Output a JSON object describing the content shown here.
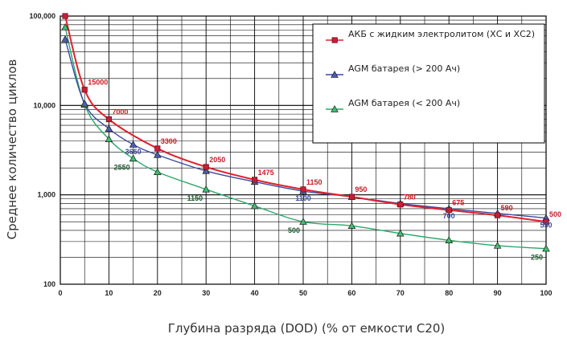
{
  "chart_data": {
    "type": "line",
    "xlabel": "Глубина разряда (DOD) (% от емкости С20)",
    "ylabel": "Среднее количество циклов",
    "xlim": [
      0,
      100
    ],
    "ylim": [
      100,
      100000
    ],
    "yscale": "log",
    "grid": true,
    "legend_position": "top-right",
    "x_ticks": [
      "0",
      "10",
      "20",
      "30",
      "40",
      "50",
      "60",
      "70",
      "80",
      "90",
      "100"
    ],
    "y_ticks": [
      "100",
      "1,000",
      "10,000",
      "100,000"
    ],
    "series": [
      {
        "name": "АКБ с жидким электролитом (ХС и ХС2)",
        "color": "#e0202c",
        "marker": "square",
        "x": [
          1,
          5,
          10,
          20,
          30,
          40,
          50,
          60,
          70,
          80,
          90,
          100
        ],
        "values": [
          100000,
          15000,
          7000,
          3300,
          2050,
          1475,
          1150,
          950,
          780,
          675,
          590,
          500
        ],
        "labels": [
          {
            "x": 5,
            "y": 15000,
            "text": "15000"
          },
          {
            "x": 10,
            "y": 7000,
            "text": "7000"
          },
          {
            "x": 20,
            "y": 3300,
            "text": "3300"
          },
          {
            "x": 30,
            "y": 2050,
            "text": "2050"
          },
          {
            "x": 40,
            "y": 1475,
            "text": "1475"
          },
          {
            "x": 50,
            "y": 1150,
            "text": "1150"
          },
          {
            "x": 60,
            "y": 950,
            "text": "950"
          },
          {
            "x": 70,
            "y": 780,
            "text": "780"
          },
          {
            "x": 80,
            "y": 675,
            "text": "675"
          },
          {
            "x": 90,
            "y": 590,
            "text": "590"
          },
          {
            "x": 100,
            "y": 500,
            "text": "500"
          }
        ]
      },
      {
        "name": "AGM батарея (> 200 Ач)",
        "color": "#3a4aa0",
        "marker": "triangle",
        "x": [
          1,
          5,
          10,
          15,
          20,
          30,
          40,
          50,
          60,
          70,
          80,
          90,
          100
        ],
        "values": [
          55000,
          10500,
          5500,
          3650,
          2800,
          1850,
          1400,
          1100,
          950,
          800,
          700,
          620,
          550
        ],
        "labels": [
          {
            "x": 15,
            "y": 3650,
            "text": "3650"
          },
          {
            "x": 50,
            "y": 1100,
            "text": "1100"
          },
          {
            "x": 80,
            "y": 700,
            "text": "700"
          },
          {
            "x": 100,
            "y": 550,
            "text": "550"
          }
        ]
      },
      {
        "name": "AGM батарея (< 200 Ач)",
        "color": "#2aa868",
        "marker": "triangle",
        "x": [
          1,
          5,
          10,
          15,
          20,
          30,
          40,
          50,
          60,
          70,
          80,
          90,
          100
        ],
        "values": [
          75000,
          10200,
          4200,
          2550,
          1800,
          1150,
          750,
          500,
          450,
          370,
          310,
          270,
          250
        ],
        "labels": [
          {
            "x": 15,
            "y": 2550,
            "text": "2550"
          },
          {
            "x": 30,
            "y": 1150,
            "text": "1150"
          },
          {
            "x": 50,
            "y": 500,
            "text": "500"
          },
          {
            "x": 100,
            "y": 250,
            "text": "250"
          }
        ]
      }
    ]
  }
}
